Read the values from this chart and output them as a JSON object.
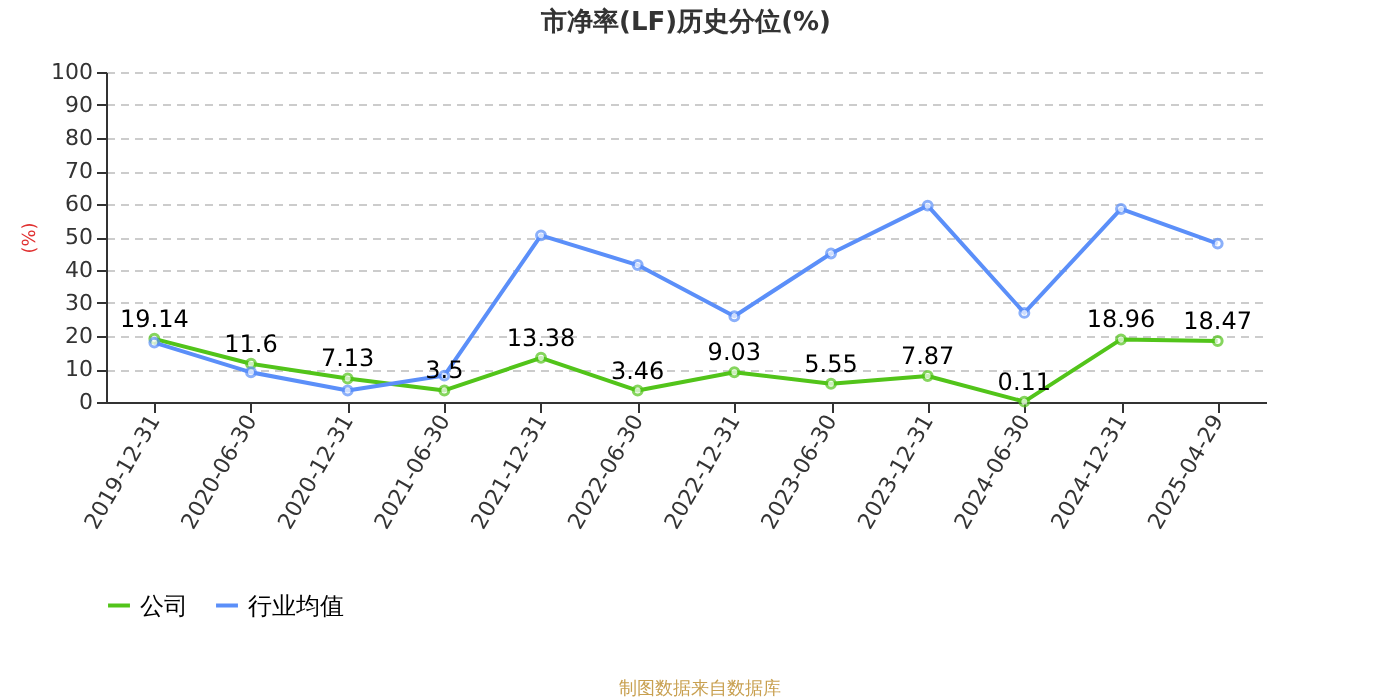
{
  "chart_data": {
    "type": "line",
    "title": "市净率(LF)历史分位(%)",
    "ylabel": "(%)",
    "categories": [
      "2019-12-31",
      "2020-06-30",
      "2020-12-31",
      "2021-06-30",
      "2021-12-31",
      "2022-06-30",
      "2022-12-31",
      "2023-06-30",
      "2023-12-31",
      "2024-06-30",
      "2024-12-31",
      "2025-04-29"
    ],
    "series": [
      {
        "name": "公司",
        "color": "#52c41a",
        "values": [
          19.14,
          11.6,
          7.13,
          3.5,
          13.38,
          3.46,
          9.03,
          5.55,
          7.87,
          0.11,
          18.96,
          18.47
        ],
        "value_labels": [
          "19.14",
          "11.6",
          "7.13",
          "3.5",
          "13.38",
          "3.46",
          "9.03",
          "5.55",
          "7.87",
          "0.11",
          "18.96",
          "18.47"
        ]
      },
      {
        "name": "行业均值",
        "color": "#5b8ff9",
        "values": [
          18,
          9,
          3.5,
          8,
          50.5,
          41.5,
          26,
          45,
          59.5,
          27,
          58.5,
          48
        ]
      }
    ],
    "ylim": [
      0,
      100
    ],
    "yticks": [
      0,
      10,
      20,
      30,
      40,
      50,
      60,
      70,
      80,
      90,
      100
    ],
    "grid": "y",
    "legend": "bottom",
    "marker": "circle",
    "line_style": "solid",
    "annotations": [
      "制图数据来自数据库"
    ]
  }
}
